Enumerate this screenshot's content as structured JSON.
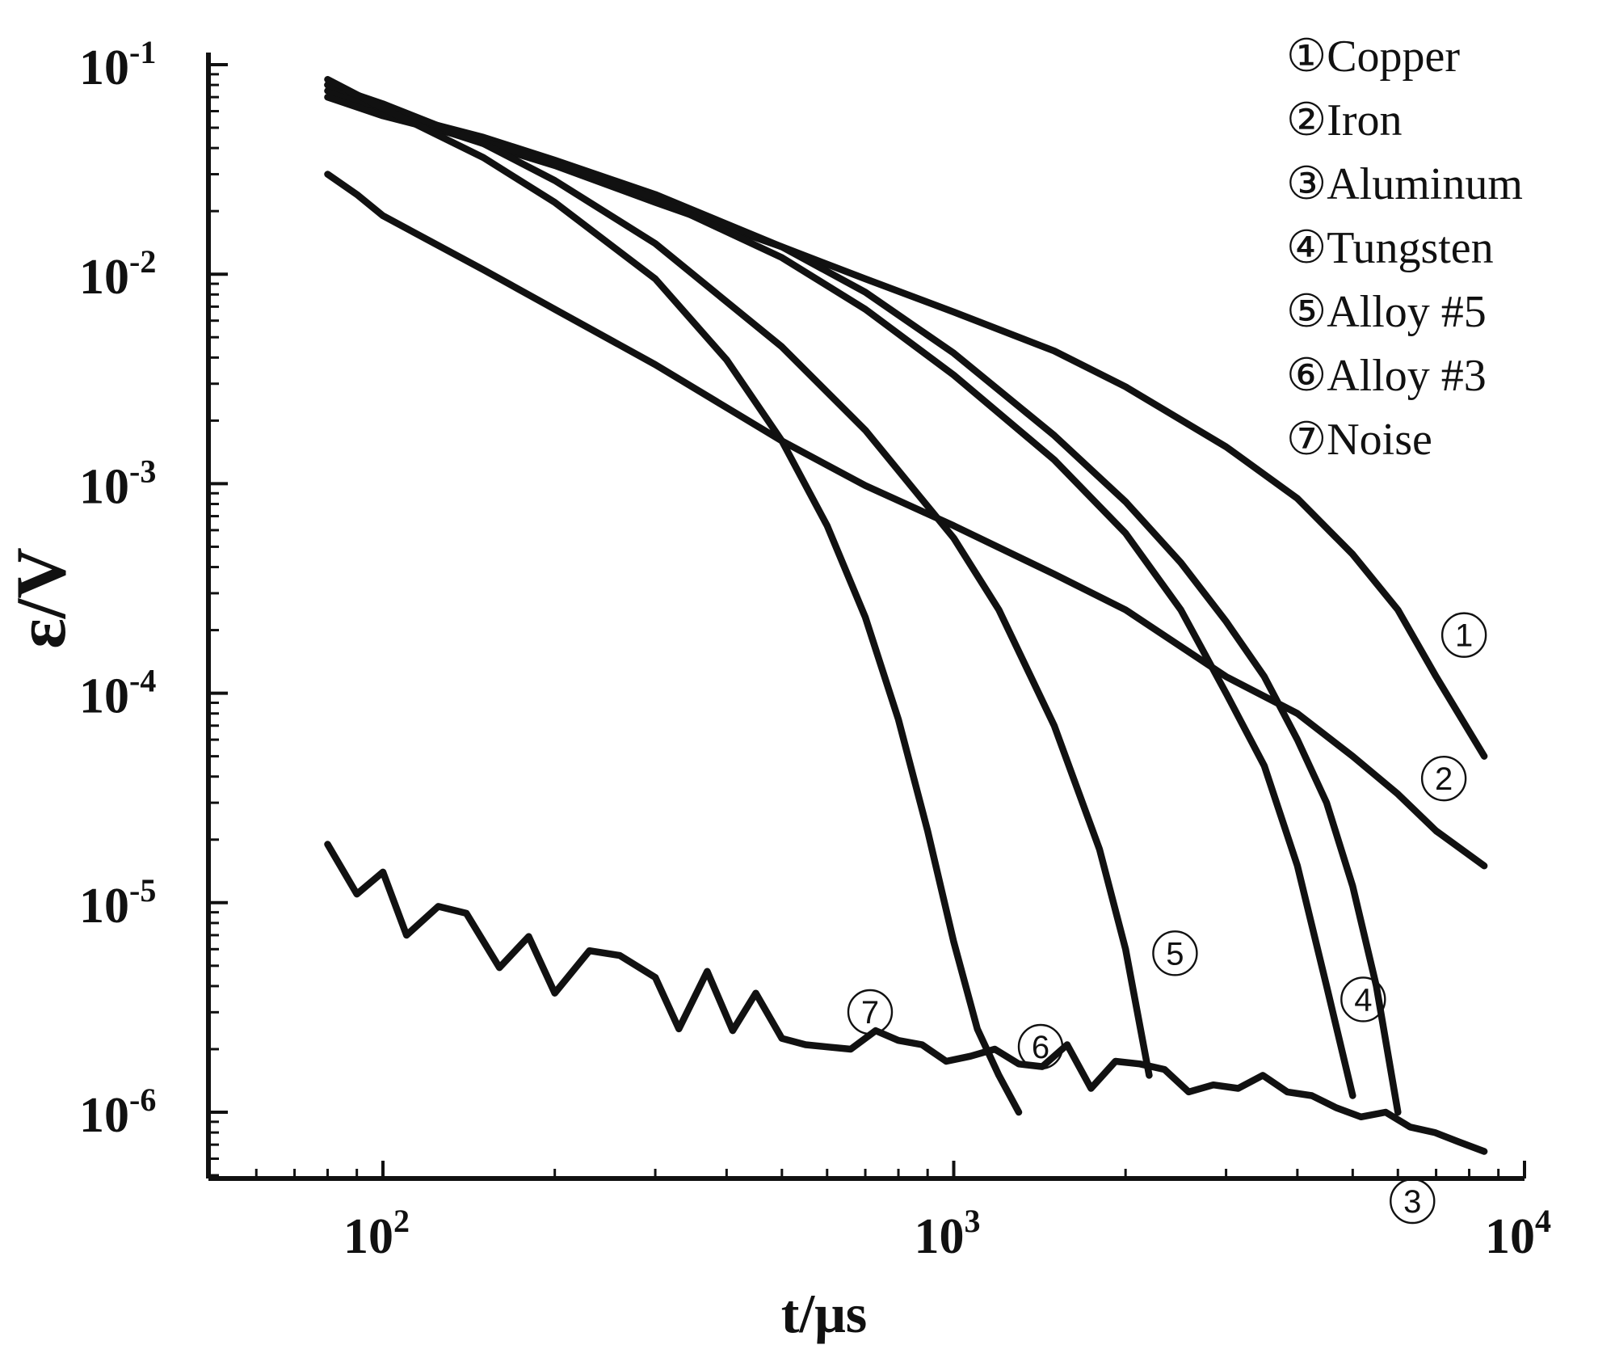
{
  "chart_data": {
    "type": "line",
    "xlabel": "t/μs",
    "ylabel": "ε/V",
    "x_scale": "log",
    "y_scale": "log",
    "xlim": [
      50,
      11000
    ],
    "ylim": [
      5e-07,
      0.11
    ],
    "x_ticks": [
      {
        "value": 100,
        "base": "10",
        "exp": "2"
      },
      {
        "value": 1000,
        "base": "10",
        "exp": "3"
      },
      {
        "value": 10000,
        "base": "10",
        "exp": "4"
      }
    ],
    "y_ticks": [
      {
        "value": 0.1,
        "base": "10",
        "exp": "-1"
      },
      {
        "value": 0.01,
        "base": "10",
        "exp": "-2"
      },
      {
        "value": 0.001,
        "base": "10",
        "exp": "-3"
      },
      {
        "value": 0.0001,
        "base": "10",
        "exp": "-4"
      },
      {
        "value": 1e-05,
        "base": "10",
        "exp": "-5"
      },
      {
        "value": 1e-06,
        "base": "10",
        "exp": "-6"
      }
    ],
    "grid": false,
    "legend_position": "top-right",
    "series": [
      {
        "name": "①Copper",
        "marker": "①",
        "x": [
          80,
          100,
          150,
          200,
          300,
          500,
          700,
          1000,
          1500,
          2000,
          3000,
          4000,
          5000,
          6000,
          7000,
          8500
        ],
        "y": [
          0.08,
          0.06,
          0.042,
          0.033,
          0.022,
          0.0135,
          0.0095,
          0.0066,
          0.0043,
          0.0029,
          0.0015,
          0.00085,
          0.00046,
          0.00025,
          0.00012,
          5e-05
        ]
      },
      {
        "name": "②Iron",
        "marker": "②",
        "x": [
          80,
          90,
          100,
          150,
          200,
          300,
          500,
          700,
          1000,
          1500,
          2000,
          3000,
          4000,
          5000,
          6000,
          7000,
          8500
        ],
        "y": [
          0.03,
          0.024,
          0.019,
          0.0105,
          0.0068,
          0.0037,
          0.0016,
          0.00098,
          0.00063,
          0.00037,
          0.00025,
          0.00012,
          8e-05,
          5e-05,
          3.3e-05,
          2.2e-05,
          1.5e-05
        ]
      },
      {
        "name": "③Aluminum",
        "marker": "③",
        "x": [
          80,
          100,
          150,
          200,
          300,
          500,
          700,
          1000,
          1500,
          2000,
          2500,
          3000,
          3500,
          4000,
          4500,
          5000,
          5500,
          6000
        ],
        "y": [
          0.075,
          0.06,
          0.045,
          0.035,
          0.024,
          0.0135,
          0.0082,
          0.0042,
          0.0017,
          0.00082,
          0.00042,
          0.00022,
          0.00012,
          6e-05,
          3e-05,
          1.2e-05,
          4e-06,
          1e-06
        ]
      },
      {
        "name": "④Tungsten",
        "marker": "④",
        "x": [
          80,
          100,
          150,
          200,
          300,
          500,
          700,
          1000,
          1500,
          2000,
          2500,
          3000,
          3500,
          4000,
          4500,
          5000
        ],
        "y": [
          0.07,
          0.057,
          0.043,
          0.034,
          0.023,
          0.012,
          0.0068,
          0.0033,
          0.0013,
          0.00058,
          0.00025,
          0.0001,
          4.5e-05,
          1.5e-05,
          4e-06,
          1.2e-06
        ]
      },
      {
        "name": "⑤Alloy #5",
        "marker": "⑤",
        "x": [
          80,
          100,
          150,
          200,
          300,
          500,
          700,
          1000,
          1200,
          1500,
          1800,
          2000,
          2200
        ],
        "y": [
          0.08,
          0.065,
          0.042,
          0.028,
          0.014,
          0.0045,
          0.0018,
          0.00055,
          0.00025,
          7e-05,
          1.8e-05,
          6e-06,
          1.5e-06
        ]
      },
      {
        "name": "⑥Alloy #3",
        "marker": "⑥",
        "x": [
          80,
          100,
          150,
          200,
          300,
          400,
          500,
          600,
          700,
          800,
          900,
          1000,
          1100,
          1200,
          1300
        ],
        "y": [
          0.085,
          0.062,
          0.036,
          0.022,
          0.0095,
          0.0039,
          0.0016,
          0.00063,
          0.00023,
          7.5e-05,
          2.2e-05,
          6.5e-06,
          2.5e-06,
          1.5e-06,
          1e-06
        ]
      },
      {
        "name": "⑦Noise",
        "marker": "⑦",
        "x": [
          80,
          90,
          100,
          110,
          125,
          140,
          160,
          180,
          200,
          230,
          260,
          300,
          330,
          370,
          410,
          450,
          500,
          550,
          600,
          660,
          730,
          800,
          880,
          970,
          1070,
          1180,
          1300,
          1430,
          1580,
          1740,
          1920,
          2120,
          2340,
          2580,
          2850,
          3150,
          3480,
          3840,
          4240,
          4680,
          5170,
          5710,
          6300,
          6960,
          7690,
          8500
        ],
        "y": [
          1.9e-05,
          1.1e-05,
          1.4e-05,
          7e-06,
          9.6e-06,
          8.9e-06,
          4.9e-06,
          6.9e-06,
          3.7e-06,
          5.9e-06,
          5.6e-06,
          4.4e-06,
          2.5e-06,
          4.7e-06,
          2.45e-06,
          3.7e-06,
          2.25e-06,
          2.1e-06,
          2.05e-06,
          2e-06,
          2.45e-06,
          2.2e-06,
          2.1e-06,
          1.75e-06,
          1.85e-06,
          2e-06,
          1.7e-06,
          1.65e-06,
          2.1e-06,
          1.3e-06,
          1.75e-06,
          1.7e-06,
          1.6e-06,
          1.25e-06,
          1.35e-06,
          1.3e-06,
          1.5e-06,
          1.25e-06,
          1.2e-06,
          1.05e-06,
          9.5e-07,
          1e-06,
          8.5e-07,
          8e-07,
          7.2e-07,
          6.5e-07
        ]
      }
    ]
  }
}
